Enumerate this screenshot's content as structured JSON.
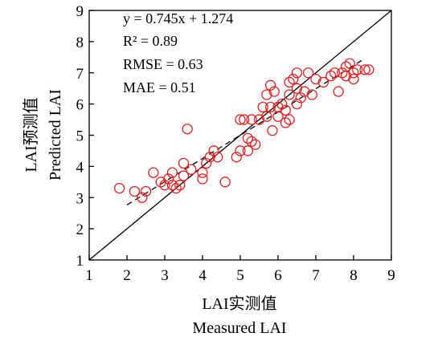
{
  "chart_data": {
    "type": "scatter",
    "xlabel_cn": "LAI实测值",
    "xlabel_en": "Measured LAI",
    "ylabel_cn": "LAI预测值",
    "ylabel_en": "Predicted LAI",
    "xlim": [
      1,
      9
    ],
    "ylim": [
      1,
      9
    ],
    "xticks": [
      1,
      2,
      3,
      4,
      5,
      6,
      7,
      8,
      9
    ],
    "yticks": [
      1,
      2,
      3,
      4,
      5,
      6,
      7,
      8,
      9
    ],
    "grid": false,
    "annotations": [
      "y = 0.745x + 1.274",
      "R² = 0.89",
      "RMSE = 0.63",
      "MAE = 0.51"
    ],
    "regression": {
      "slope": 0.745,
      "intercept": 1.274,
      "x_range": [
        2.0,
        8.3
      ]
    },
    "reference_line": {
      "label": "1:1",
      "from": [
        1,
        1
      ],
      "to": [
        9,
        9
      ]
    },
    "colors": {
      "points": "#e02020",
      "lines": "#000000"
    },
    "points": [
      [
        1.8,
        3.3
      ],
      [
        2.2,
        3.2
      ],
      [
        2.4,
        3.0
      ],
      [
        2.5,
        3.2
      ],
      [
        2.7,
        3.8
      ],
      [
        2.9,
        3.5
      ],
      [
        3.0,
        3.4
      ],
      [
        3.1,
        3.6
      ],
      [
        3.2,
        3.4
      ],
      [
        3.2,
        3.8
      ],
      [
        3.3,
        3.3
      ],
      [
        3.4,
        3.4
      ],
      [
        3.5,
        3.7
      ],
      [
        3.5,
        4.1
      ],
      [
        3.6,
        5.2
      ],
      [
        3.7,
        3.9
      ],
      [
        4.0,
        3.6
      ],
      [
        4.0,
        3.8
      ],
      [
        4.1,
        4.1
      ],
      [
        4.2,
        4.3
      ],
      [
        4.3,
        4.5
      ],
      [
        4.4,
        4.3
      ],
      [
        4.6,
        3.5
      ],
      [
        4.9,
        4.3
      ],
      [
        5.0,
        5.5
      ],
      [
        5.0,
        4.5
      ],
      [
        5.1,
        5.5
      ],
      [
        5.2,
        4.9
      ],
      [
        5.2,
        4.5
      ],
      [
        5.3,
        5.5
      ],
      [
        5.3,
        4.8
      ],
      [
        5.4,
        4.7
      ],
      [
        5.5,
        5.5
      ],
      [
        5.6,
        5.9
      ],
      [
        5.7,
        5.6
      ],
      [
        5.7,
        6.3
      ],
      [
        5.8,
        5.9
      ],
      [
        5.8,
        6.6
      ],
      [
        5.85,
        5.15
      ],
      [
        5.9,
        6.4
      ],
      [
        6.0,
        5.6
      ],
      [
        6.0,
        5.9
      ],
      [
        6.1,
        6.0
      ],
      [
        6.2,
        5.4
      ],
      [
        6.2,
        5.8
      ],
      [
        6.3,
        6.3
      ],
      [
        6.3,
        6.7
      ],
      [
        6.3,
        5.5
      ],
      [
        6.4,
        6.8
      ],
      [
        6.5,
        6.0
      ],
      [
        6.5,
        6.5
      ],
      [
        6.5,
        7.0
      ],
      [
        6.6,
        6.2
      ],
      [
        6.7,
        6.4
      ],
      [
        6.8,
        7.0
      ],
      [
        6.9,
        6.3
      ],
      [
        7.0,
        6.8
      ],
      [
        7.2,
        6.7
      ],
      [
        7.4,
        6.9
      ],
      [
        7.5,
        7.0
      ],
      [
        7.6,
        6.4
      ],
      [
        7.7,
        7.0
      ],
      [
        7.8,
        6.9
      ],
      [
        7.8,
        7.2
      ],
      [
        7.9,
        7.3
      ],
      [
        8.0,
        6.8
      ],
      [
        8.0,
        7.0
      ],
      [
        8.1,
        7.1
      ],
      [
        8.3,
        7.1
      ],
      [
        8.4,
        7.1
      ]
    ]
  }
}
